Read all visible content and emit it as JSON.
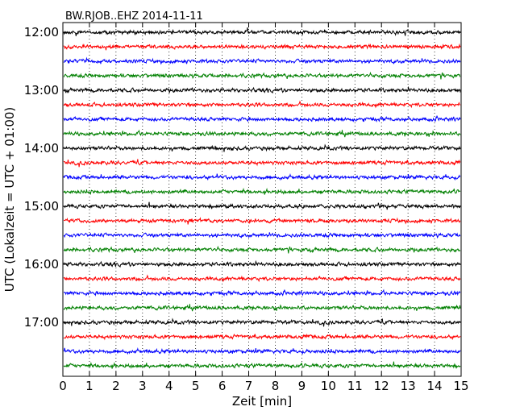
{
  "chart_data": {
    "type": "line",
    "title": "BW.RJOB..EHZ 2014-11-11",
    "xlabel": "Zeit  [min]",
    "ylabel": "UTC (Lokalzeit = UTC + 01:00)",
    "xlim": [
      0,
      15
    ],
    "x_ticks": [
      0,
      1,
      2,
      3,
      4,
      5,
      6,
      7,
      8,
      9,
      10,
      11,
      12,
      13,
      14,
      15
    ],
    "y_tick_labels": [
      "12:00",
      "13:00",
      "14:00",
      "15:00",
      "16:00",
      "17:00"
    ],
    "grid": "vertical dotted",
    "trace_colors": [
      "#000000",
      "#ff0000",
      "#0000ff",
      "#008000"
    ],
    "traces": [
      {
        "start": "12:00",
        "color": "#000000"
      },
      {
        "start": "12:15",
        "color": "#ff0000"
      },
      {
        "start": "12:30",
        "color": "#0000ff"
      },
      {
        "start": "12:45",
        "color": "#008000"
      },
      {
        "start": "13:00",
        "color": "#000000"
      },
      {
        "start": "13:15",
        "color": "#ff0000"
      },
      {
        "start": "13:30",
        "color": "#0000ff"
      },
      {
        "start": "13:45",
        "color": "#008000"
      },
      {
        "start": "14:00",
        "color": "#000000"
      },
      {
        "start": "14:15",
        "color": "#ff0000"
      },
      {
        "start": "14:30",
        "color": "#0000ff"
      },
      {
        "start": "14:45",
        "color": "#008000"
      },
      {
        "start": "15:00",
        "color": "#000000"
      },
      {
        "start": "15:15",
        "color": "#ff0000"
      },
      {
        "start": "15:30",
        "color": "#0000ff"
      },
      {
        "start": "15:45",
        "color": "#008000"
      },
      {
        "start": "16:00",
        "color": "#000000"
      },
      {
        "start": "16:15",
        "color": "#ff0000"
      },
      {
        "start": "16:30",
        "color": "#0000ff"
      },
      {
        "start": "16:45",
        "color": "#008000"
      },
      {
        "start": "17:00",
        "color": "#000000"
      },
      {
        "start": "17:15",
        "color": "#ff0000"
      },
      {
        "start": "17:30",
        "color": "#0000ff"
      },
      {
        "start": "17:45",
        "color": "#008000"
      }
    ]
  }
}
